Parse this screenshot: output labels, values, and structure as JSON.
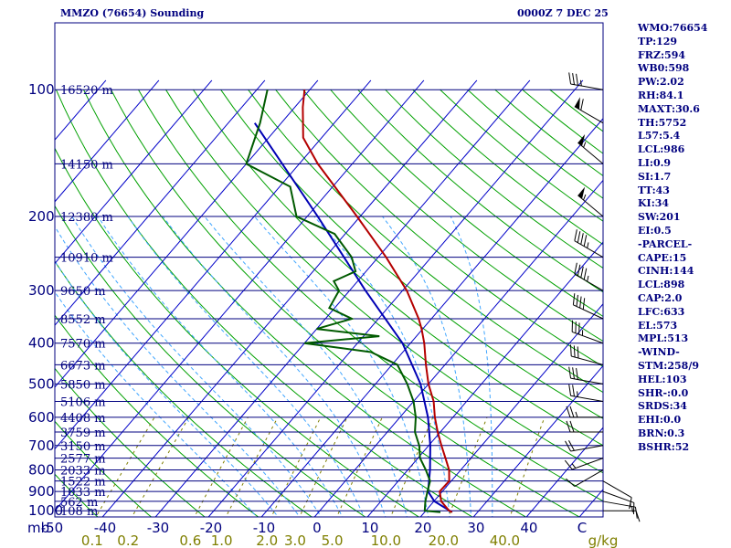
{
  "header": {
    "title": "MMZO (76654) Sounding",
    "datetime": "0000Z  7 DEC 25"
  },
  "stats": [
    "WMO:76654",
    "TP:129",
    "FRZ:594",
    "WB0:598",
    "PW:2.02",
    "RH:84.1",
    "MAXT:30.6",
    "TH:5752",
    "L57:5.4",
    "LCL:986",
    "LI:0.9",
    "SI:1.7",
    "TT:43",
    "KI:34",
    "SW:201",
    "EI:0.5",
    "-PARCEL-",
    "CAPE:15",
    "CINH:144",
    "LCL:898",
    "CAP:2.0",
    "LFC:633",
    "EL:573",
    "MPL:513",
    "-WIND-",
    "STM:258/9",
    "HEL:103",
    "SHR-:0.0",
    "SRDS:34",
    "EHI:0.0",
    "BRN:0.3",
    "BSHR:52"
  ],
  "colors": {
    "isobar": "#00007f",
    "isotherm": "#0000c8",
    "dry_adiabat": "#00a000",
    "moist_adiabat": "#3fa5ff",
    "mixing_ratio": "#7f7f00",
    "temperature": "#b40000",
    "dewpoint": "#005a00",
    "parcel": "#0000b4",
    "wind_barb": "#000000",
    "text": "#00007f"
  },
  "chart_data": {
    "type": "skew-t",
    "pressure_axis_label": "mb",
    "pressure_levels": [
      100,
      200,
      300,
      400,
      500,
      600,
      700,
      800,
      900,
      1000
    ],
    "height_labels": [
      {
        "p": 100,
        "label": "16520 m"
      },
      {
        "p": 150,
        "label": "14150 m"
      },
      {
        "p": 200,
        "label": "12380 m"
      },
      {
        "p": 250,
        "label": "10910 m"
      },
      {
        "p": 300,
        "label": "9650 m"
      },
      {
        "p": 350,
        "label": "8552 m"
      },
      {
        "p": 400,
        "label": "7570 m"
      },
      {
        "p": 450,
        "label": "6673 m"
      },
      {
        "p": 500,
        "label": "5850 m"
      },
      {
        "p": 550,
        "label": "5106 m"
      },
      {
        "p": 600,
        "label": "4408 m"
      },
      {
        "p": 650,
        "label": "3759 m"
      },
      {
        "p": 700,
        "label": "3150 m"
      },
      {
        "p": 750,
        "label": "2577 m"
      },
      {
        "p": 800,
        "label": "2033 m"
      },
      {
        "p": 850,
        "label": "1522 m"
      },
      {
        "p": 900,
        "label": "1033 m"
      },
      {
        "p": 950,
        "label": "562 m"
      },
      {
        "p": 1000,
        "label": "108 m"
      }
    ],
    "temperature_ticks": [
      {
        "t": -50,
        "label": "-50"
      },
      {
        "t": -40,
        "label": "-40"
      },
      {
        "t": -30,
        "label": "-30"
      },
      {
        "t": -20,
        "label": "-20"
      },
      {
        "t": -10,
        "label": "-10"
      },
      {
        "t": 0,
        "label": "0"
      },
      {
        "t": 10,
        "label": "10"
      },
      {
        "t": 20,
        "label": "20"
      },
      {
        "t": 30,
        "label": "30"
      },
      {
        "t": 40,
        "label": "40"
      },
      {
        "t": 50,
        "label": "C"
      }
    ],
    "mixing_ratio_ticks": [
      {
        "w": 0.1,
        "label": "0.1"
      },
      {
        "w": 0.2,
        "label": "0.2"
      },
      {
        "w": 0.6,
        "label": "0.6"
      },
      {
        "w": 1.0,
        "label": "1.0"
      },
      {
        "w": 2.0,
        "label": "2.0"
      },
      {
        "w": 3.0,
        "label": "3.0"
      },
      {
        "w": 5.0,
        "label": "5.0"
      },
      {
        "w": 10.0,
        "label": "10.0"
      },
      {
        "w": 20.0,
        "label": "20.0"
      },
      {
        "w": 40.0,
        "label": "40.0"
      }
    ],
    "mixing_ratio_unit": "g/kg",
    "temperature_profile": [
      [
        1008,
        25.2
      ],
      [
        1000,
        24.4
      ],
      [
        950,
        21.4
      ],
      [
        900,
        19.5
      ],
      [
        850,
        19.6
      ],
      [
        800,
        17.8
      ],
      [
        750,
        15.2
      ],
      [
        700,
        12.4
      ],
      [
        650,
        9.5
      ],
      [
        600,
        6.6
      ],
      [
        550,
        3.8
      ],
      [
        500,
        0.0
      ],
      [
        450,
        -3.6
      ],
      [
        400,
        -7.4
      ],
      [
        370,
        -10.2
      ],
      [
        350,
        -12.4
      ],
      [
        300,
        -19.2
      ],
      [
        250,
        -28.5
      ],
      [
        200,
        -40.6
      ],
      [
        150,
        -56.5
      ],
      [
        130,
        -63.5
      ],
      [
        110,
        -68.5
      ],
      [
        100,
        -71.0
      ]
    ],
    "dewpoint_profile": [
      [
        1008,
        23.0
      ],
      [
        1000,
        19.8
      ],
      [
        950,
        18.4
      ],
      [
        900,
        17.2
      ],
      [
        850,
        16.0
      ],
      [
        800,
        13.4
      ],
      [
        750,
        10.4
      ],
      [
        700,
        8.2
      ],
      [
        650,
        5.2
      ],
      [
        600,
        3.0
      ],
      [
        550,
        0.0
      ],
      [
        500,
        -4.0
      ],
      [
        450,
        -9.0
      ],
      [
        420,
        -16.0
      ],
      [
        400,
        -30.0
      ],
      [
        385,
        -17.0
      ],
      [
        370,
        -30.0
      ],
      [
        350,
        -25.0
      ],
      [
        330,
        -31.0
      ],
      [
        300,
        -32.0
      ],
      [
        285,
        -34.5
      ],
      [
        270,
        -32.0
      ],
      [
        250,
        -35.0
      ],
      [
        220,
        -42.0
      ],
      [
        200,
        -52.0
      ],
      [
        170,
        -58.0
      ],
      [
        150,
        -70.0
      ],
      [
        120,
        -74.0
      ],
      [
        100,
        -78.0
      ]
    ],
    "parcel_profile": [
      [
        1008,
        25.2
      ],
      [
        950,
        20.1
      ],
      [
        900,
        17.3
      ],
      [
        850,
        15.8
      ],
      [
        800,
        14.2
      ],
      [
        700,
        10.3
      ],
      [
        600,
        5.3
      ],
      [
        500,
        -1.5
      ],
      [
        400,
        -11.5
      ],
      [
        300,
        -27.0
      ],
      [
        200,
        -48.0
      ],
      [
        120,
        -75.0
      ]
    ],
    "wind_profile": [
      {
        "p": 1000,
        "dir": 90,
        "spd": 10
      },
      {
        "p": 950,
        "dir": 100,
        "spd": 15
      },
      {
        "p": 900,
        "dir": 110,
        "spd": 15
      },
      {
        "p": 850,
        "dir": 120,
        "spd": 10
      },
      {
        "p": 800,
        "dir": 240,
        "spd": 10
      },
      {
        "p": 750,
        "dir": 250,
        "spd": 15
      },
      {
        "p": 700,
        "dir": 260,
        "spd": 20
      },
      {
        "p": 650,
        "dir": 270,
        "spd": 20
      },
      {
        "p": 600,
        "dir": 270,
        "spd": 25
      },
      {
        "p": 550,
        "dir": 280,
        "spd": 25
      },
      {
        "p": 500,
        "dir": 280,
        "spd": 30
      },
      {
        "p": 450,
        "dir": 285,
        "spd": 30
      },
      {
        "p": 400,
        "dir": 290,
        "spd": 35
      },
      {
        "p": 350,
        "dir": 295,
        "spd": 40
      },
      {
        "p": 300,
        "dir": 300,
        "spd": 45
      },
      {
        "p": 250,
        "dir": 300,
        "spd": 45
      },
      {
        "p": 200,
        "dir": 310,
        "spd": 55
      },
      {
        "p": 150,
        "dir": 310,
        "spd": 55
      },
      {
        "p": 120,
        "dir": 300,
        "spd": 60
      },
      {
        "p": 100,
        "dir": 280,
        "spd": 35
      }
    ]
  }
}
